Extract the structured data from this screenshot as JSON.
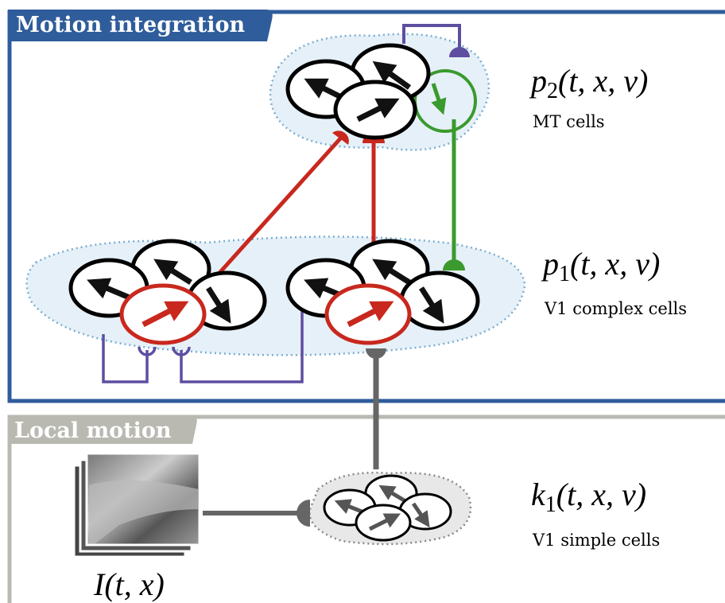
{
  "panels": {
    "motion_integration": {
      "title": "Motion integration"
    },
    "local_motion": {
      "title": "Local motion"
    }
  },
  "labels": [
    {
      "symbol": "p",
      "subscript": "2",
      "args": "(t, x, v)",
      "caption": "MT cells"
    },
    {
      "symbol": "p",
      "subscript": "1",
      "args": "(t, x, v)",
      "caption": "V1 complex cells"
    },
    {
      "symbol": "k",
      "subscript": "1",
      "args": "(t, x, v)",
      "caption": "V1 simple cells"
    }
  ],
  "input": {
    "label": "I(t, x)"
  }
}
